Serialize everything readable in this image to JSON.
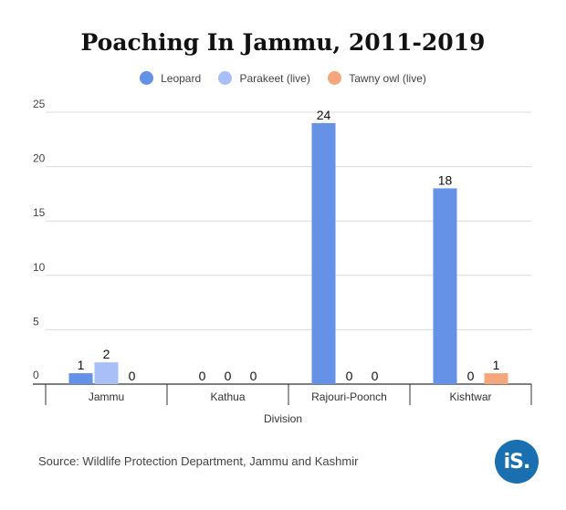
{
  "title": "Poaching In Jammu, 2011-2019",
  "source": "Source: Wildlife Protection Department, Jammu and Kashmir",
  "logo_text": "iS.",
  "chart_data": {
    "type": "bar",
    "title": "Poaching In Jammu, 2011-2019",
    "xlabel": "Division",
    "ylabel": "",
    "ylim": [
      0,
      25
    ],
    "yticks": [
      0,
      5,
      10,
      15,
      20,
      25
    ],
    "grid": true,
    "legend_position": "top",
    "categories": [
      "Jammu",
      "Kathua",
      "Rajouri-Poonch",
      "Kishtwar"
    ],
    "series": [
      {
        "name": "Leopard",
        "color": "#6592e6",
        "values": [
          1,
          0,
          24,
          18
        ]
      },
      {
        "name": "Parakeet (live)",
        "color": "#a8c0f7",
        "values": [
          2,
          0,
          0,
          0
        ]
      },
      {
        "name": "Tawny owl (live)",
        "color": "#f4a67d",
        "values": [
          0,
          0,
          0,
          1
        ]
      }
    ]
  }
}
